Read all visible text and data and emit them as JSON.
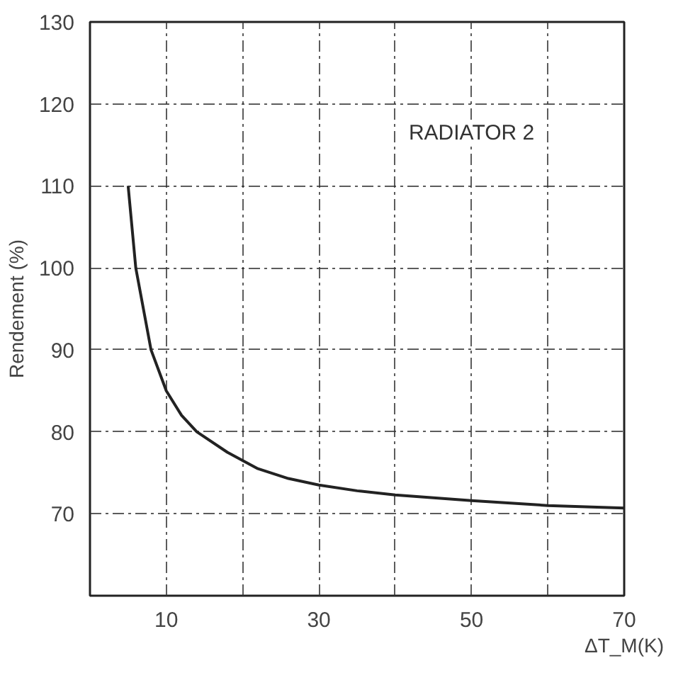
{
  "chart_data": {
    "type": "line",
    "xlabel": "ΔT_M(K)",
    "ylabel": "Rendement (%)",
    "annotations": [
      "RADIATOR 2"
    ],
    "x": [
      5,
      6,
      8,
      10,
      12,
      14,
      18,
      22,
      26,
      30,
      35,
      40,
      50,
      60,
      70
    ],
    "series": [
      {
        "color": "#222222",
        "values": [
          110,
          100,
          90,
          85,
          82,
          80,
          77.5,
          75.5,
          74.3,
          73.5,
          72.8,
          72.3,
          71.6,
          71,
          70.7
        ]
      }
    ],
    "xlim": [
      0,
      70
    ],
    "ylim": [
      60,
      130
    ],
    "xticks": [
      10,
      {
        "value": 20,
        "label": null
      },
      30,
      {
        "value": 40,
        "label": null
      },
      50,
      {
        "value": 60,
        "label": null
      },
      70
    ],
    "yticks": [
      70,
      80,
      90,
      100,
      110,
      120,
      130
    ],
    "grid": true,
    "line_style": "solid"
  }
}
